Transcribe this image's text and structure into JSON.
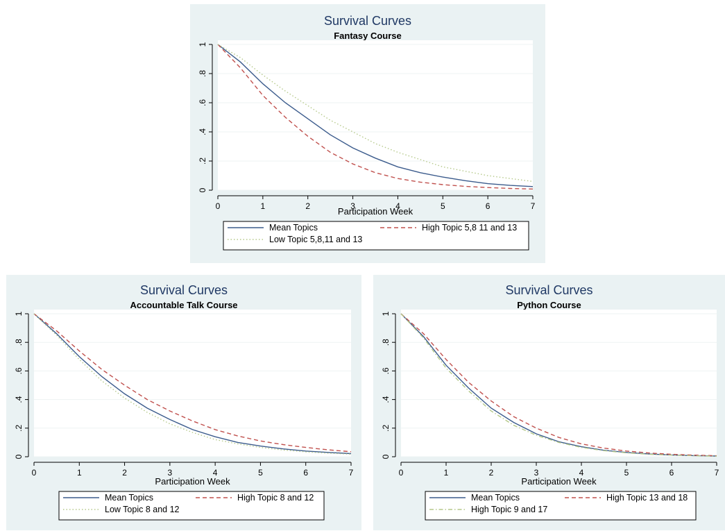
{
  "chart_data": [
    {
      "type": "line",
      "title": "Survival Curves",
      "subtitle": "Fantasy Course",
      "xlabel": "Participation Week",
      "ylabel": "",
      "xlim": [
        0,
        7
      ],
      "ylim": [
        0,
        1
      ],
      "x_ticks": [
        "0",
        "1",
        "2",
        "3",
        "4",
        "5",
        "6",
        "7"
      ],
      "y_ticks": [
        "0",
        ".2",
        ".4",
        ".6",
        ".8",
        "1"
      ],
      "grid": true,
      "legend_position": "bottom",
      "x": [
        0,
        0.5,
        1,
        1.5,
        2,
        2.5,
        3,
        3.5,
        4,
        4.5,
        5,
        5.5,
        6,
        6.5,
        7
      ],
      "series": [
        {
          "name": "Mean Topics",
          "color": "#3b5b8c",
          "dash": "solid",
          "values": [
            1.0,
            0.88,
            0.73,
            0.6,
            0.49,
            0.38,
            0.29,
            0.22,
            0.16,
            0.12,
            0.09,
            0.065,
            0.045,
            0.033,
            0.025
          ]
        },
        {
          "name": "High Topic 5,8 11 and 13",
          "color": "#c0504d",
          "dash": "dashed",
          "values": [
            1.0,
            0.84,
            0.65,
            0.5,
            0.37,
            0.26,
            0.18,
            0.12,
            0.08,
            0.055,
            0.038,
            0.026,
            0.018,
            0.012,
            0.008
          ]
        },
        {
          "name": "Low Topic 5,8,11 and 13",
          "color": "#b5c98a",
          "dash": "dotted",
          "values": [
            1.0,
            0.91,
            0.79,
            0.68,
            0.58,
            0.48,
            0.4,
            0.32,
            0.26,
            0.21,
            0.16,
            0.13,
            0.1,
            0.08,
            0.06
          ]
        }
      ]
    },
    {
      "type": "line",
      "title": "Survival Curves",
      "subtitle": "Accountable Talk Course",
      "xlabel": "Participation Week",
      "ylabel": "",
      "xlim": [
        0,
        7
      ],
      "ylim": [
        0,
        1
      ],
      "x_ticks": [
        "0",
        "1",
        "2",
        "3",
        "4",
        "5",
        "6",
        "7"
      ],
      "y_ticks": [
        "0",
        ".2",
        ".4",
        ".6",
        ".8",
        "1"
      ],
      "grid": true,
      "legend_position": "bottom",
      "x": [
        0,
        0.5,
        1,
        1.5,
        2,
        2.5,
        3,
        3.5,
        4,
        4.5,
        5,
        5.5,
        6,
        6.5,
        7
      ],
      "series": [
        {
          "name": "Mean Topics",
          "color": "#3b5b8c",
          "dash": "solid",
          "values": [
            1.0,
            0.86,
            0.7,
            0.56,
            0.44,
            0.34,
            0.26,
            0.19,
            0.14,
            0.1,
            0.075,
            0.055,
            0.04,
            0.03,
            0.022
          ]
        },
        {
          "name": "High Topic 8 and 12",
          "color": "#c0504d",
          "dash": "dashed",
          "values": [
            1.0,
            0.88,
            0.74,
            0.61,
            0.5,
            0.4,
            0.32,
            0.25,
            0.19,
            0.145,
            0.11,
            0.085,
            0.065,
            0.048,
            0.035
          ]
        },
        {
          "name": "Low Topic 8 and 12",
          "color": "#b5c98a",
          "dash": "dotted",
          "values": [
            1.0,
            0.85,
            0.68,
            0.53,
            0.41,
            0.31,
            0.23,
            0.17,
            0.12,
            0.09,
            0.065,
            0.047,
            0.034,
            0.025,
            0.018
          ]
        }
      ]
    },
    {
      "type": "line",
      "title": "Survival Curves",
      "subtitle": "Python Course",
      "xlabel": "Participation Week",
      "ylabel": "",
      "xlim": [
        0,
        7
      ],
      "ylim": [
        0,
        1
      ],
      "x_ticks": [
        "0",
        "1",
        "2",
        "3",
        "4",
        "5",
        "6",
        "7"
      ],
      "y_ticks": [
        "0",
        ".2",
        ".4",
        ".6",
        ".8",
        "1"
      ],
      "grid": true,
      "legend_position": "bottom",
      "x": [
        0,
        0.5,
        1,
        1.5,
        2,
        2.5,
        3,
        3.5,
        4,
        4.5,
        5,
        5.5,
        6,
        6.5,
        7
      ],
      "series": [
        {
          "name": "Mean Topics",
          "color": "#3b5b8c",
          "dash": "solid",
          "values": [
            1.0,
            0.84,
            0.64,
            0.48,
            0.34,
            0.24,
            0.16,
            0.105,
            0.07,
            0.045,
            0.03,
            0.019,
            0.012,
            0.008,
            0.005
          ]
        },
        {
          "name": "High Topic 13 and 18",
          "color": "#c0504d",
          "dash": "dashed",
          "values": [
            1.0,
            0.86,
            0.68,
            0.52,
            0.39,
            0.28,
            0.2,
            0.135,
            0.09,
            0.06,
            0.04,
            0.026,
            0.017,
            0.011,
            0.007
          ]
        },
        {
          "name": "High Topic 9 and 17",
          "color": "#b5c98a",
          "dash": "dashdot",
          "values": [
            1.0,
            0.83,
            0.62,
            0.46,
            0.32,
            0.22,
            0.15,
            0.1,
            0.065,
            0.042,
            0.027,
            0.017,
            0.011,
            0.007,
            0.004
          ]
        }
      ]
    }
  ]
}
